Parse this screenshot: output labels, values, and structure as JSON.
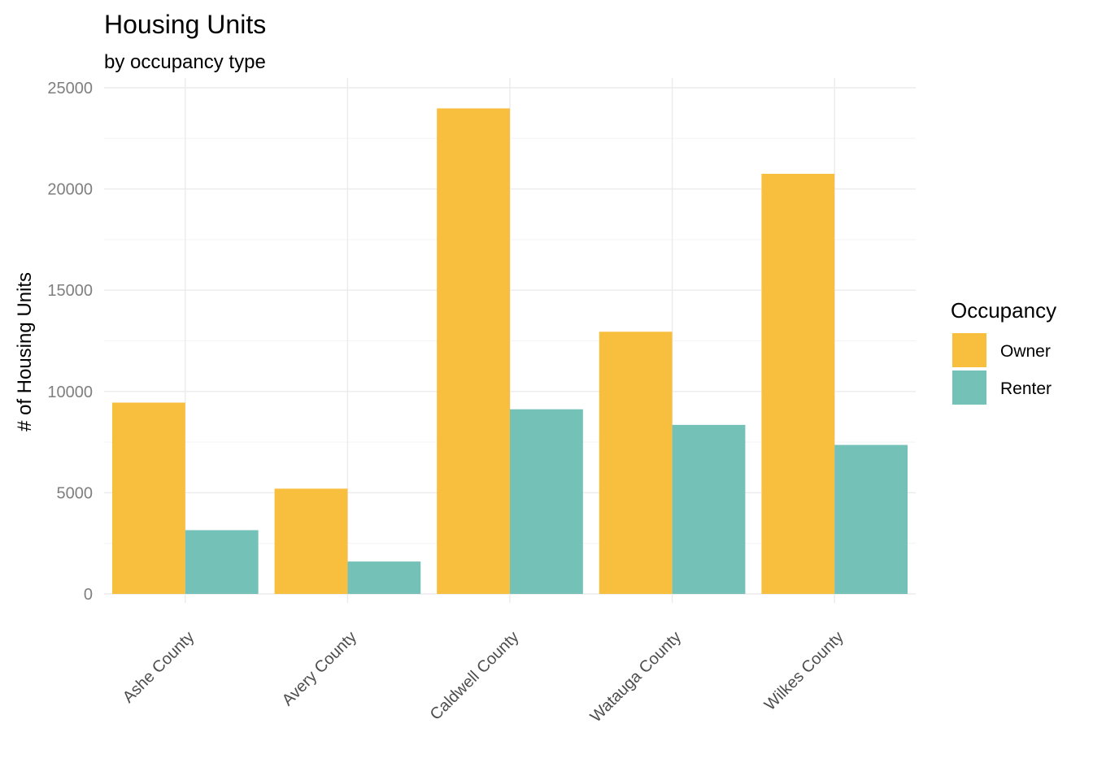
{
  "chart_data": {
    "type": "bar",
    "title": "Housing Units",
    "subtitle": "by occupancy type",
    "xlabel": "",
    "ylabel": "# of Housing Units",
    "categories": [
      "Ashe County",
      "Avery County",
      "Caldwell County",
      "Watauga County",
      "Wilkes County"
    ],
    "series": [
      {
        "name": "Owner",
        "color": "#F8BF3F",
        "values": [
          9450,
          5200,
          23980,
          12950,
          20750
        ]
      },
      {
        "name": "Renter",
        "color": "#74C1B8",
        "values": [
          3150,
          1600,
          9120,
          8350,
          7360
        ]
      }
    ],
    "ylim": [
      0,
      25000
    ],
    "yticks": [
      "0",
      "5000",
      "10000",
      "15000",
      "20000",
      "25000"
    ],
    "legend": {
      "title": "Occupancy",
      "position": "right"
    },
    "grid": true
  }
}
